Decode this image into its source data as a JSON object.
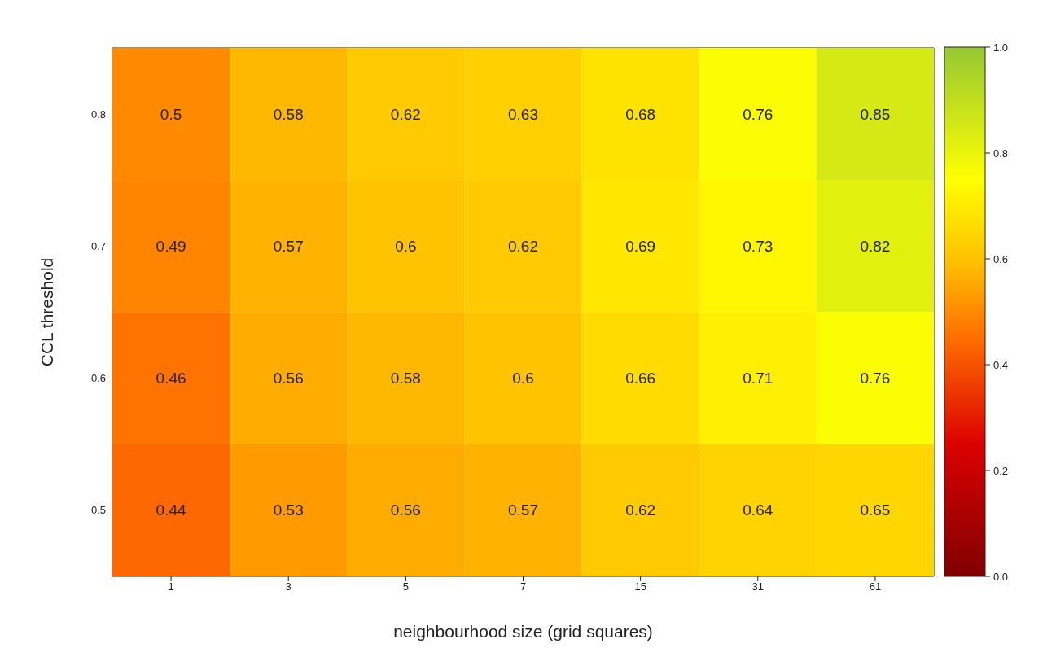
{
  "chart_data": {
    "type": "heatmap",
    "xlabel": "neighbourhood size (grid squares)",
    "ylabel": "CCL threshold",
    "categories": [
      "1",
      "3",
      "5",
      "7",
      "15",
      "31",
      "61"
    ],
    "y_categories": [
      "0.8",
      "0.7",
      "0.6",
      "0.5"
    ],
    "cells": [
      [
        0.5,
        0.58,
        0.62,
        0.63,
        0.68,
        0.76,
        0.85
      ],
      [
        0.49,
        0.57,
        0.6,
        0.62,
        0.69,
        0.73,
        0.82
      ],
      [
        0.46,
        0.56,
        0.58,
        0.6,
        0.66,
        0.71,
        0.76
      ],
      [
        0.44,
        0.53,
        0.56,
        0.57,
        0.62,
        0.64,
        0.65
      ]
    ],
    "data_labels": true,
    "clim": [
      0,
      1
    ],
    "cticks": [
      {
        "value": 0,
        "label": "0.0"
      },
      0.2,
      0.4,
      0.6,
      0.8,
      {
        "value": 1,
        "label": "1.0"
      }
    ]
  }
}
